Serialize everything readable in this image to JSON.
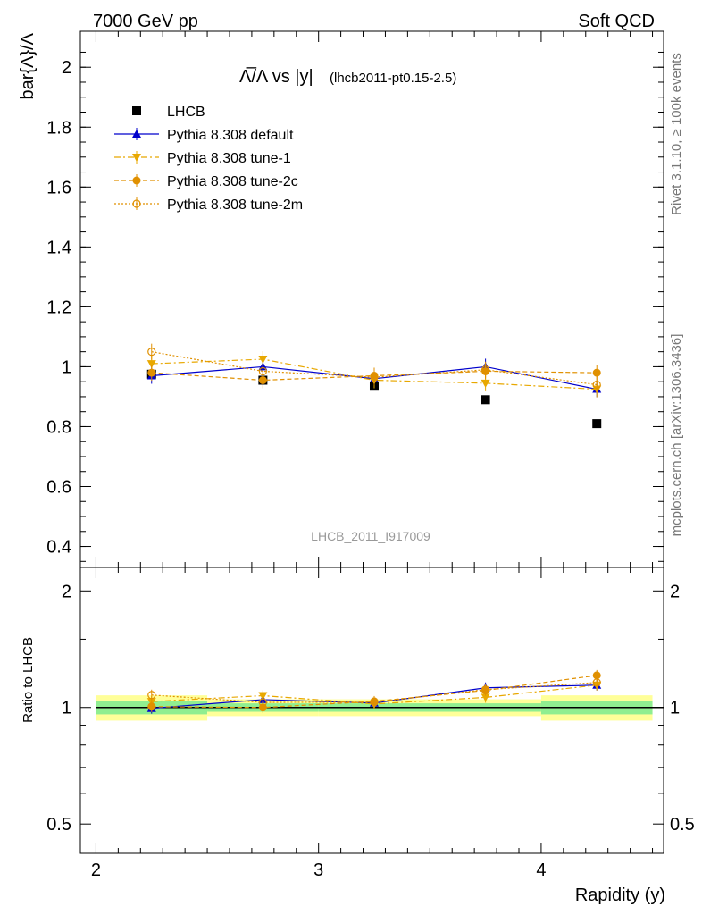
{
  "header": {
    "left": "7000 GeV pp",
    "right": "Soft QCD"
  },
  "side_text": {
    "rivet": "Rivet 3.1.10, ≥ 100k events",
    "source": "mcplots.cern.ch [arXiv:1306.3436]"
  },
  "chart_data": [
    {
      "type": "scatter",
      "title_main": "Λ̅/Λ vs |y|",
      "title_sub": "(lhcb2011-pt0.15-2.5)",
      "ylabel": "bar{Λ}/Λ",
      "xlabel": "Rapidity (y)",
      "watermark": "LHCB_2011_I917009",
      "xlim": [
        1.93,
        4.55
      ],
      "ylim": [
        0.33,
        2.12
      ],
      "yticks": [
        "0.4",
        "0.6",
        "0.8",
        "1",
        "1.2",
        "1.4",
        "1.6",
        "1.8",
        "2"
      ],
      "x": [
        2.25,
        2.75,
        3.25,
        3.75,
        4.25
      ],
      "bin_edges": [
        2.0,
        2.5,
        3.0,
        3.5,
        4.0,
        4.5
      ],
      "legend": {
        "position": "top-left"
      },
      "series": [
        {
          "name": "LHCB",
          "color": "#000000",
          "marker": "square",
          "line": "none",
          "values": [
            0.975,
            0.955,
            0.935,
            0.89,
            0.81
          ]
        },
        {
          "name": "Pythia 8.308 default",
          "color": "#0000cc",
          "marker": "triangle-up",
          "line": "solid",
          "values": [
            0.97,
            1.0,
            0.96,
            1.0,
            0.925
          ]
        },
        {
          "name": "Pythia 8.308 tune-1",
          "color": "#e8a800",
          "marker": "triangle-down",
          "line": "dashdot",
          "values": [
            1.01,
            1.025,
            0.955,
            0.945,
            0.925
          ]
        },
        {
          "name": "Pythia 8.308 tune-2c",
          "color": "#e09000",
          "marker": "circle",
          "line": "dashed",
          "values": [
            0.98,
            0.955,
            0.97,
            0.985,
            0.98
          ]
        },
        {
          "name": "Pythia 8.308 tune-2m",
          "color": "#e09000",
          "marker": "circle-open",
          "line": "dotted",
          "values": [
            1.05,
            0.985,
            0.965,
            0.99,
            0.94
          ]
        }
      ]
    },
    {
      "type": "scatter",
      "ylabel": "Ratio to LHCB",
      "xlim": [
        1.93,
        4.55
      ],
      "ylim": [
        0.42,
        2.3
      ],
      "log_y": true,
      "yticks": [
        "0.5",
        "1",
        "2"
      ],
      "xticks": [
        "2",
        "3",
        "4"
      ],
      "x": [
        2.25,
        2.75,
        3.25,
        3.75,
        4.25
      ],
      "bands": {
        "bin_edges": [
          2.0,
          2.5,
          3.0,
          3.5,
          4.0,
          4.5
        ],
        "green_half_width": [
          0.04,
          0.025,
          0.025,
          0.025,
          0.04
        ],
        "yellow_half_width": [
          0.075,
          0.05,
          0.05,
          0.05,
          0.075
        ]
      },
      "series": [
        {
          "name": "Pythia 8.308 default",
          "values": [
            0.995,
            1.048,
            1.027,
            1.124,
            1.142
          ]
        },
        {
          "name": "Pythia 8.308 tune-1",
          "values": [
            1.036,
            1.073,
            1.021,
            1.062,
            1.142
          ]
        },
        {
          "name": "Pythia 8.308 tune-2c",
          "values": [
            1.005,
            1.0,
            1.037,
            1.107,
            1.21
          ]
        },
        {
          "name": "Pythia 8.308 tune-2m",
          "values": [
            1.077,
            1.031,
            1.032,
            1.112,
            1.16
          ]
        }
      ]
    }
  ]
}
